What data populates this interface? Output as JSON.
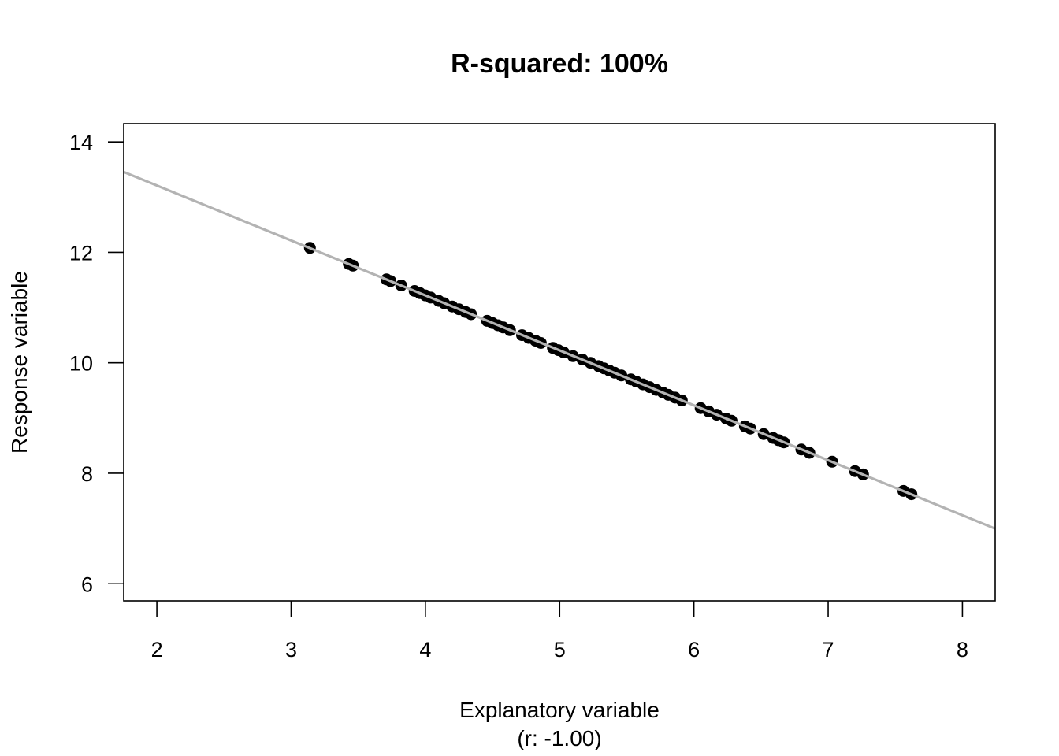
{
  "chart_data": {
    "type": "scatter",
    "title": "R-squared: 100%",
    "xlabel": "Explanatory variable",
    "xlabel_sub": "(r: -1.00)",
    "ylabel": "Response variable",
    "xlim": [
      1.753,
      8.244
    ],
    "ylim": [
      5.69,
      14.33
    ],
    "xticks": [
      2,
      3,
      4,
      5,
      6,
      7,
      8
    ],
    "yticks": [
      6,
      8,
      10,
      12,
      14
    ],
    "grid": false,
    "legend": null,
    "fit_line": {
      "slope": -0.995,
      "intercept": 15.2,
      "color": "#b3b3b3"
    },
    "point_color": "#000000",
    "series": [
      {
        "name": "observations",
        "x": [
          3.14,
          3.43,
          3.46,
          3.71,
          3.74,
          3.82,
          3.92,
          3.96,
          4.0,
          4.04,
          4.1,
          4.14,
          4.2,
          4.25,
          4.3,
          4.34,
          4.46,
          4.5,
          4.54,
          4.58,
          4.63,
          4.72,
          4.77,
          4.82,
          4.86,
          4.95,
          4.99,
          5.03,
          5.1,
          5.17,
          5.23,
          5.29,
          5.33,
          5.37,
          5.41,
          5.46,
          5.53,
          5.57,
          5.62,
          5.67,
          5.72,
          5.77,
          5.81,
          5.86,
          5.91,
          6.05,
          6.11,
          6.17,
          6.24,
          6.28,
          6.38,
          6.42,
          6.52,
          6.59,
          6.63,
          6.67,
          6.8,
          6.86,
          7.03,
          7.2,
          7.26,
          7.56,
          7.62
        ],
        "y": [
          12.08,
          11.79,
          11.76,
          11.51,
          11.48,
          11.4,
          11.3,
          11.26,
          11.22,
          11.18,
          11.12,
          11.08,
          11.02,
          10.97,
          10.92,
          10.88,
          10.76,
          10.72,
          10.68,
          10.64,
          10.59,
          10.5,
          10.45,
          10.4,
          10.36,
          10.27,
          10.23,
          10.19,
          10.12,
          10.06,
          10.0,
          9.94,
          9.9,
          9.86,
          9.82,
          9.77,
          9.7,
          9.66,
          9.61,
          9.56,
          9.51,
          9.46,
          9.42,
          9.37,
          9.32,
          9.18,
          9.12,
          9.06,
          8.99,
          8.95,
          8.85,
          8.81,
          8.71,
          8.64,
          8.6,
          8.56,
          8.43,
          8.37,
          8.21,
          8.04,
          7.98,
          7.68,
          7.62
        ]
      }
    ]
  }
}
